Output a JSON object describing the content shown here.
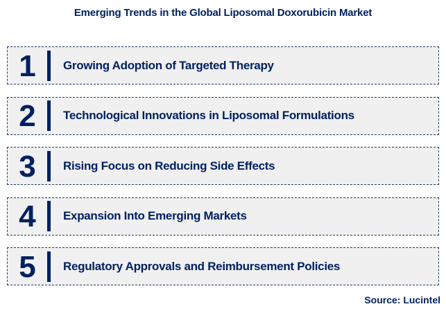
{
  "title": "Emerging Trends in the Global Liposomal Doxorubicin Market",
  "trends": [
    {
      "number": "1",
      "label": "Growing Adoption of Targeted Therapy"
    },
    {
      "number": "2",
      "label": "Technological Innovations in Liposomal Formulations"
    },
    {
      "number": "3",
      "label": "Rising Focus on Reducing Side Effects"
    },
    {
      "number": "4",
      "label": "Expansion Into Emerging Markets"
    },
    {
      "number": "5",
      "label": "Regulatory Approvals and Reimbursement Policies"
    }
  ],
  "source": "Source: Lucintel",
  "colors": {
    "navy_text": "#002060",
    "box_border": "#1f3864",
    "box_background": "#f0f0f1"
  }
}
